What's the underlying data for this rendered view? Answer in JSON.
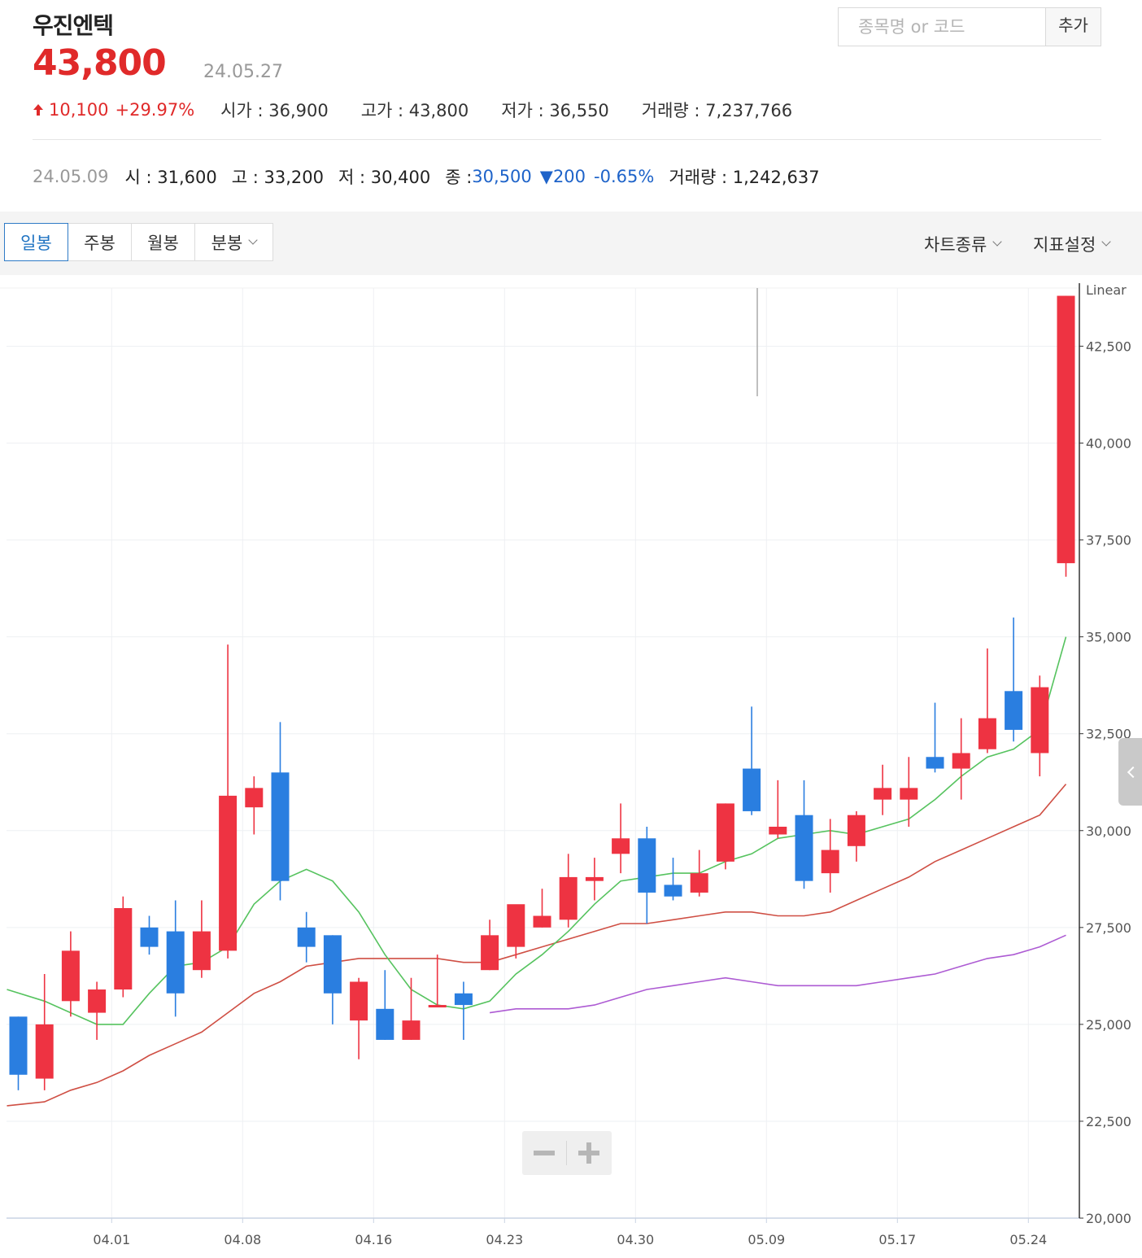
{
  "header": {
    "stock_name": "우진엔텍",
    "price": "43,800",
    "date": "24.05.27",
    "change_arrow": "up-arrow",
    "change": "10,100",
    "change_pct": "+29.97%",
    "open": "시가 : 36,900",
    "high": "고가 : 43,800",
    "low": "저가 : 36,550",
    "volume": "거래량 : 7,237,766"
  },
  "search": {
    "placeholder": "종목명 or 코드",
    "add_label": "추가"
  },
  "hover_info": {
    "date": "24.05.09",
    "open": "시 : 31,600",
    "high": "고 : 33,200",
    "low": "저 : 30,400",
    "close_label": "종 : ",
    "close_value": "30,500",
    "change_arrow": "▼",
    "change": "200",
    "change_pct": "-0.65%",
    "volume": "거래량 : 1,242,637"
  },
  "toolbar": {
    "tabs": [
      "일봉",
      "주봉",
      "월봉",
      "분봉"
    ],
    "active_tab": "일봉",
    "chart_type_label": "차트종류",
    "indicator_label": "지표설정"
  },
  "colors": {
    "up": "#e02a2a",
    "down": "#1e63c9",
    "candle_up": "#ee3342",
    "candle_down": "#2a7ee0",
    "ma5": "#56c35f",
    "ma20": "#cf4f44",
    "ma60": "#ad5bd3"
  },
  "chart_data": {
    "type": "candlestick",
    "scale_label": "Linear",
    "ylim": [
      20000,
      44000
    ],
    "y_ticks": [
      "20,000",
      "22,500",
      "25,000",
      "27,500",
      "30,000",
      "32,500",
      "35,000",
      "37,500",
      "40,000",
      "42,500"
    ],
    "x_ticks": [
      "04.01",
      "04.08",
      "04.16",
      "04.23",
      "04.30",
      "05.09",
      "05.17",
      "05.24"
    ],
    "candles": [
      {
        "o": 25200,
        "h": 25200,
        "l": 23300,
        "c": 23700
      },
      {
        "o": 23600,
        "h": 26300,
        "l": 23300,
        "c": 25000
      },
      {
        "o": 25600,
        "h": 27400,
        "l": 25200,
        "c": 26900
      },
      {
        "o": 25300,
        "h": 26100,
        "l": 24600,
        "c": 25900
      },
      {
        "o": 25900,
        "h": 28300,
        "l": 25700,
        "c": 28000
      },
      {
        "o": 27500,
        "h": 27800,
        "l": 26800,
        "c": 27000
      },
      {
        "o": 27400,
        "h": 28200,
        "l": 25200,
        "c": 25800
      },
      {
        "o": 26400,
        "h": 28200,
        "l": 26200,
        "c": 27400
      },
      {
        "o": 26900,
        "h": 34800,
        "l": 26700,
        "c": 30900
      },
      {
        "o": 30600,
        "h": 31400,
        "l": 29900,
        "c": 31100
      },
      {
        "o": 31500,
        "h": 32800,
        "l": 28200,
        "c": 28700
      },
      {
        "o": 27500,
        "h": 27900,
        "l": 26600,
        "c": 27000
      },
      {
        "o": 27300,
        "h": 27300,
        "l": 25000,
        "c": 25800
      },
      {
        "o": 25100,
        "h": 26200,
        "l": 24100,
        "c": 26100
      },
      {
        "o": 25400,
        "h": 26400,
        "l": 24600,
        "c": 24600
      },
      {
        "o": 24600,
        "h": 26200,
        "l": 24600,
        "c": 25100
      },
      {
        "o": 25500,
        "h": 26800,
        "l": 25500,
        "c": 25500
      },
      {
        "o": 25800,
        "h": 26100,
        "l": 24600,
        "c": 25500
      },
      {
        "o": 26400,
        "h": 27700,
        "l": 26400,
        "c": 27300
      },
      {
        "o": 27000,
        "h": 28000,
        "l": 26700,
        "c": 28100
      },
      {
        "o": 27500,
        "h": 28500,
        "l": 27500,
        "c": 27800
      },
      {
        "o": 27700,
        "h": 29400,
        "l": 27500,
        "c": 28800
      },
      {
        "o": 28700,
        "h": 29300,
        "l": 28200,
        "c": 28800
      },
      {
        "o": 29400,
        "h": 30700,
        "l": 28900,
        "c": 29800
      },
      {
        "o": 29800,
        "h": 30100,
        "l": 27600,
        "c": 28400
      },
      {
        "o": 28600,
        "h": 29300,
        "l": 28200,
        "c": 28300
      },
      {
        "o": 28400,
        "h": 29500,
        "l": 28300,
        "c": 28900
      },
      {
        "o": 29200,
        "h": 30700,
        "l": 29000,
        "c": 30700
      },
      {
        "o": 31600,
        "h": 33200,
        "l": 30400,
        "c": 30500
      },
      {
        "o": 29900,
        "h": 31300,
        "l": 29800,
        "c": 30100
      },
      {
        "o": 30400,
        "h": 31300,
        "l": 28500,
        "c": 28700
      },
      {
        "o": 28900,
        "h": 30300,
        "l": 28400,
        "c": 29500
      },
      {
        "o": 29600,
        "h": 30500,
        "l": 29200,
        "c": 30400
      },
      {
        "o": 30800,
        "h": 31700,
        "l": 30400,
        "c": 31100
      },
      {
        "o": 30800,
        "h": 31900,
        "l": 30100,
        "c": 31100
      },
      {
        "o": 31900,
        "h": 33300,
        "l": 31500,
        "c": 31600
      },
      {
        "o": 31600,
        "h": 32900,
        "l": 30800,
        "c": 32000
      },
      {
        "o": 32100,
        "h": 34700,
        "l": 32000,
        "c": 32900
      },
      {
        "o": 33600,
        "h": 35500,
        "l": 32300,
        "c": 32600
      },
      {
        "o": 32000,
        "h": 34000,
        "l": 31400,
        "c": 33700
      },
      {
        "o": 36900,
        "h": 43800,
        "l": 36550,
        "c": 43800
      }
    ],
    "ma5": [
      25900,
      25600,
      25300,
      25000,
      25000,
      25800,
      26500,
      26600,
      27000,
      28100,
      28700,
      29000,
      28700,
      27900,
      26800,
      25900,
      25500,
      25400,
      25600,
      26300,
      26800,
      27400,
      28100,
      28700,
      28800,
      28900,
      28900,
      29200,
      29400,
      29800,
      29900,
      30000,
      29900,
      30100,
      30300,
      30800,
      31400,
      31900,
      32100,
      32600,
      35000
    ],
    "ma20": [
      22900,
      23000,
      23300,
      23500,
      23800,
      24200,
      24500,
      24800,
      25300,
      25800,
      26100,
      26500,
      26600,
      26700,
      26700,
      26700,
      26700,
      26600,
      26600,
      26800,
      27000,
      27200,
      27400,
      27600,
      27600,
      27700,
      27800,
      27900,
      27900,
      27800,
      27800,
      27900,
      28200,
      28500,
      28800,
      29200,
      29500,
      29800,
      30100,
      30400,
      31200
    ],
    "ma60": [
      null,
      null,
      null,
      null,
      null,
      null,
      null,
      null,
      null,
      null,
      null,
      null,
      null,
      null,
      null,
      null,
      null,
      null,
      25300,
      25400,
      25400,
      25400,
      25500,
      25700,
      25900,
      26000,
      26100,
      26200,
      26100,
      26000,
      26000,
      26000,
      26000,
      26100,
      26200,
      26300,
      26500,
      26700,
      26800,
      27000,
      27300
    ]
  }
}
